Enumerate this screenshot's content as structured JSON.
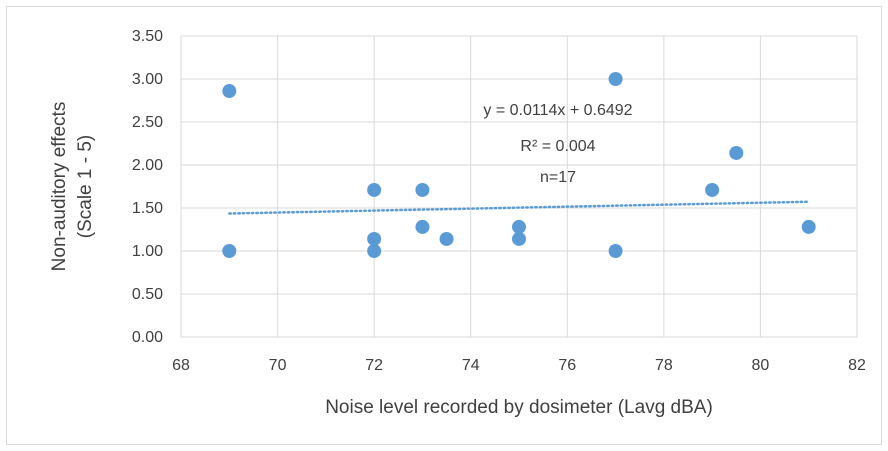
{
  "chart_data": {
    "type": "scatter",
    "title": "",
    "xlabel": "Noise level recorded by dosimeter (Lavg dBA)",
    "ylabel_lines": [
      "Non-auditory effects",
      "(Scale 1 - 5)"
    ],
    "xlim": [
      68,
      82
    ],
    "ylim": [
      0,
      3.5
    ],
    "x_ticks": [
      "68",
      "70",
      "72",
      "74",
      "76",
      "78",
      "80",
      "82"
    ],
    "y_ticks": [
      "0.00",
      "0.50",
      "1.00",
      "1.50",
      "2.00",
      "2.50",
      "3.00",
      "3.50"
    ],
    "grid": "vertical and horizontal major gridlines",
    "legend": "none",
    "points": [
      {
        "x": 69,
        "y": 2.86
      },
      {
        "x": 69,
        "y": 1.0
      },
      {
        "x": 72,
        "y": 1.71
      },
      {
        "x": 72,
        "y": 1.14
      },
      {
        "x": 72,
        "y": 1.0
      },
      {
        "x": 73,
        "y": 1.71
      },
      {
        "x": 73,
        "y": 1.28
      },
      {
        "x": 73.5,
        "y": 1.14
      },
      {
        "x": 75,
        "y": 1.28
      },
      {
        "x": 75,
        "y": 1.14
      },
      {
        "x": 77,
        "y": 3.0
      },
      {
        "x": 77,
        "y": 1.0
      },
      {
        "x": 79,
        "y": 1.71
      },
      {
        "x": 79.5,
        "y": 2.14
      },
      {
        "x": 81,
        "y": 1.28
      }
    ],
    "trendline": {
      "type": "linear",
      "slope": 0.0114,
      "intercept": 0.6492,
      "x_range": [
        69,
        81
      ],
      "style": "dotted"
    },
    "annotations": [
      "y = 0.0114x + 0.6492",
      "R² = 0.004",
      "n=17"
    ],
    "colors": {
      "marker": "#5b9bd5",
      "trend": "#5b9bd5",
      "grid": "#d9d9d9",
      "text": "#404040"
    }
  }
}
